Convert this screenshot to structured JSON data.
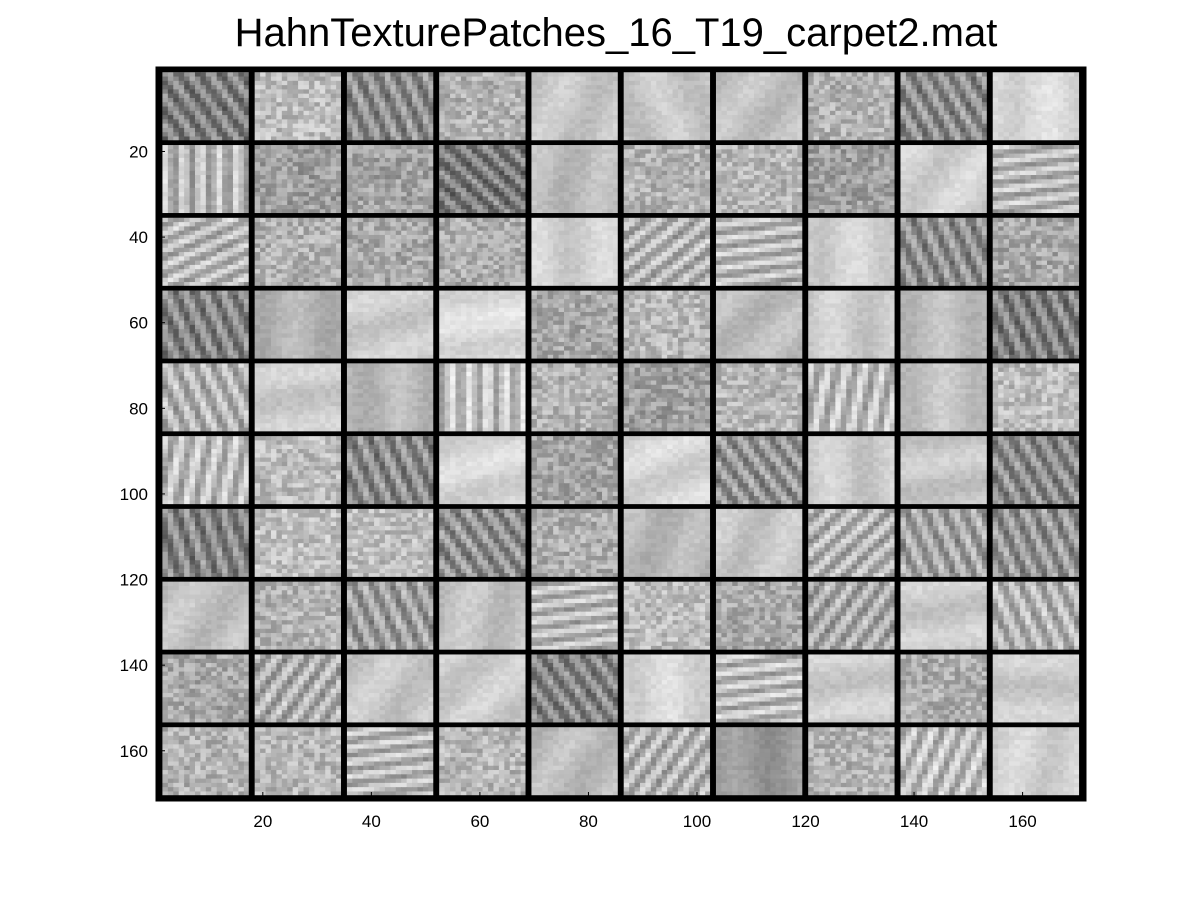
{
  "figure": {
    "title": "HahnTexturePatches_16_T19_carpet2.mat",
    "grid": {
      "rows": 10,
      "cols": 10,
      "patch_size": 16,
      "border": 1,
      "extent": [
        1,
        171
      ]
    },
    "x_axis": {
      "ticks": [
        20,
        40,
        60,
        80,
        100,
        120,
        140,
        160
      ],
      "labels": [
        "20",
        "40",
        "60",
        "80",
        "100",
        "120",
        "140",
        "160"
      ]
    },
    "y_axis": {
      "ticks": [
        20,
        40,
        60,
        80,
        100,
        120,
        140,
        160
      ],
      "labels": [
        "20",
        "40",
        "60",
        "80",
        "100",
        "120",
        "140",
        "160"
      ]
    },
    "colormap": "gray",
    "patches": [
      {
        "mean": 0.5,
        "texture": "stripe",
        "angle": -30
      },
      {
        "mean": 0.74,
        "texture": "noise",
        "angle": 0
      },
      {
        "mean": 0.55,
        "texture": "stripe",
        "angle": -20
      },
      {
        "mean": 0.7,
        "texture": "noise",
        "angle": 0
      },
      {
        "mean": 0.78,
        "texture": "smooth",
        "angle": 20
      },
      {
        "mean": 0.78,
        "texture": "smooth",
        "angle": -20
      },
      {
        "mean": 0.76,
        "texture": "smooth",
        "angle": 30
      },
      {
        "mean": 0.7,
        "texture": "noise",
        "angle": 0
      },
      {
        "mean": 0.55,
        "texture": "stripe",
        "angle": -25
      },
      {
        "mean": 0.85,
        "texture": "smooth",
        "angle": 0
      },
      {
        "mean": 0.72,
        "texture": "stripe",
        "angle": 0
      },
      {
        "mean": 0.62,
        "texture": "noise",
        "angle": 0
      },
      {
        "mean": 0.64,
        "texture": "noise",
        "angle": 0
      },
      {
        "mean": 0.48,
        "texture": "stripe",
        "angle": -40
      },
      {
        "mean": 0.74,
        "texture": "smooth",
        "angle": 10
      },
      {
        "mean": 0.7,
        "texture": "noise",
        "angle": 0
      },
      {
        "mean": 0.72,
        "texture": "noise",
        "angle": 0
      },
      {
        "mean": 0.62,
        "texture": "noise",
        "angle": 0
      },
      {
        "mean": 0.82,
        "texture": "smooth",
        "angle": 30
      },
      {
        "mean": 0.72,
        "texture": "stripe",
        "angle": 80
      },
      {
        "mean": 0.72,
        "texture": "stripe",
        "angle": 60
      },
      {
        "mean": 0.7,
        "texture": "noise",
        "angle": 0
      },
      {
        "mean": 0.66,
        "texture": "noise",
        "angle": 0
      },
      {
        "mean": 0.68,
        "texture": "noise",
        "angle": 0
      },
      {
        "mean": 0.82,
        "texture": "smooth",
        "angle": 0
      },
      {
        "mean": 0.7,
        "texture": "stripe",
        "angle": 45
      },
      {
        "mean": 0.72,
        "texture": "stripe",
        "angle": 80
      },
      {
        "mean": 0.82,
        "texture": "smooth",
        "angle": 0
      },
      {
        "mean": 0.56,
        "texture": "stripe",
        "angle": -20
      },
      {
        "mean": 0.66,
        "texture": "noise",
        "angle": 0
      },
      {
        "mean": 0.52,
        "texture": "stripe",
        "angle": -20
      },
      {
        "mean": 0.7,
        "texture": "smooth",
        "angle": 0
      },
      {
        "mean": 0.8,
        "texture": "smooth",
        "angle": 70
      },
      {
        "mean": 0.86,
        "texture": "smooth",
        "angle": 80
      },
      {
        "mean": 0.66,
        "texture": "noise",
        "angle": 0
      },
      {
        "mean": 0.72,
        "texture": "noise",
        "angle": 0
      },
      {
        "mean": 0.74,
        "texture": "smooth",
        "angle": 40
      },
      {
        "mean": 0.8,
        "texture": "smooth",
        "angle": 0
      },
      {
        "mean": 0.74,
        "texture": "smooth",
        "angle": 0
      },
      {
        "mean": 0.5,
        "texture": "stripe",
        "angle": -20
      },
      {
        "mean": 0.7,
        "texture": "stripe",
        "angle": -20
      },
      {
        "mean": 0.8,
        "texture": "smooth",
        "angle": 80
      },
      {
        "mean": 0.72,
        "texture": "smooth",
        "angle": 0
      },
      {
        "mean": 0.76,
        "texture": "stripe",
        "angle": 0
      },
      {
        "mean": 0.7,
        "texture": "noise",
        "angle": 0
      },
      {
        "mean": 0.62,
        "texture": "noise",
        "angle": 0
      },
      {
        "mean": 0.72,
        "texture": "noise",
        "angle": 0
      },
      {
        "mean": 0.74,
        "texture": "stripe",
        "angle": 10
      },
      {
        "mean": 0.76,
        "texture": "smooth",
        "angle": 0
      },
      {
        "mean": 0.74,
        "texture": "noise",
        "angle": 0
      },
      {
        "mean": 0.74,
        "texture": "stripe",
        "angle": 10
      },
      {
        "mean": 0.74,
        "texture": "noise",
        "angle": 0
      },
      {
        "mean": 0.54,
        "texture": "stripe",
        "angle": -20
      },
      {
        "mean": 0.84,
        "texture": "smooth",
        "angle": 70
      },
      {
        "mean": 0.64,
        "texture": "noise",
        "angle": 0
      },
      {
        "mean": 0.84,
        "texture": "smooth",
        "angle": 60
      },
      {
        "mean": 0.58,
        "texture": "stripe",
        "angle": -30
      },
      {
        "mean": 0.8,
        "texture": "smooth",
        "angle": 0
      },
      {
        "mean": 0.78,
        "texture": "smooth",
        "angle": 80
      },
      {
        "mean": 0.54,
        "texture": "stripe",
        "angle": -25
      },
      {
        "mean": 0.52,
        "texture": "stripe",
        "angle": -15
      },
      {
        "mean": 0.76,
        "texture": "noise",
        "angle": 0
      },
      {
        "mean": 0.74,
        "texture": "noise",
        "angle": 0
      },
      {
        "mean": 0.56,
        "texture": "stripe",
        "angle": -30
      },
      {
        "mean": 0.68,
        "texture": "noise",
        "angle": 0
      },
      {
        "mean": 0.72,
        "texture": "smooth",
        "angle": 20
      },
      {
        "mean": 0.78,
        "texture": "smooth",
        "angle": 20
      },
      {
        "mean": 0.7,
        "texture": "stripe",
        "angle": 40
      },
      {
        "mean": 0.64,
        "texture": "stripe",
        "angle": -20
      },
      {
        "mean": 0.58,
        "texture": "stripe",
        "angle": -20
      },
      {
        "mean": 0.76,
        "texture": "smooth",
        "angle": 30
      },
      {
        "mean": 0.7,
        "texture": "noise",
        "angle": 0
      },
      {
        "mean": 0.62,
        "texture": "stripe",
        "angle": -20
      },
      {
        "mean": 0.76,
        "texture": "smooth",
        "angle": 10
      },
      {
        "mean": 0.72,
        "texture": "stripe",
        "angle": 80
      },
      {
        "mean": 0.74,
        "texture": "noise",
        "angle": 0
      },
      {
        "mean": 0.66,
        "texture": "noise",
        "angle": 0
      },
      {
        "mean": 0.66,
        "texture": "stripe",
        "angle": 30
      },
      {
        "mean": 0.8,
        "texture": "smooth",
        "angle": 80
      },
      {
        "mean": 0.7,
        "texture": "stripe",
        "angle": -20
      },
      {
        "mean": 0.66,
        "texture": "noise",
        "angle": 0
      },
      {
        "mean": 0.68,
        "texture": "stripe",
        "angle": 30
      },
      {
        "mean": 0.78,
        "texture": "smooth",
        "angle": 30
      },
      {
        "mean": 0.8,
        "texture": "smooth",
        "angle": 40
      },
      {
        "mean": 0.52,
        "texture": "stripe",
        "angle": -30
      },
      {
        "mean": 0.84,
        "texture": "smooth",
        "angle": 0
      },
      {
        "mean": 0.74,
        "texture": "stripe",
        "angle": 80
      },
      {
        "mean": 0.8,
        "texture": "smooth",
        "angle": 80
      },
      {
        "mean": 0.68,
        "texture": "noise",
        "angle": 0
      },
      {
        "mean": 0.8,
        "texture": "smooth",
        "angle": 90
      },
      {
        "mean": 0.7,
        "texture": "noise",
        "angle": 0
      },
      {
        "mean": 0.72,
        "texture": "noise",
        "angle": 0
      },
      {
        "mean": 0.72,
        "texture": "stripe",
        "angle": 80
      },
      {
        "mean": 0.72,
        "texture": "noise",
        "angle": 0
      },
      {
        "mean": 0.74,
        "texture": "smooth",
        "angle": 30
      },
      {
        "mean": 0.7,
        "texture": "stripe",
        "angle": 30
      },
      {
        "mean": 0.6,
        "texture": "smooth",
        "angle": 0
      },
      {
        "mean": 0.7,
        "texture": "noise",
        "angle": 0
      },
      {
        "mean": 0.74,
        "texture": "stripe",
        "angle": 20
      },
      {
        "mean": 0.82,
        "texture": "smooth",
        "angle": 10
      }
    ]
  }
}
